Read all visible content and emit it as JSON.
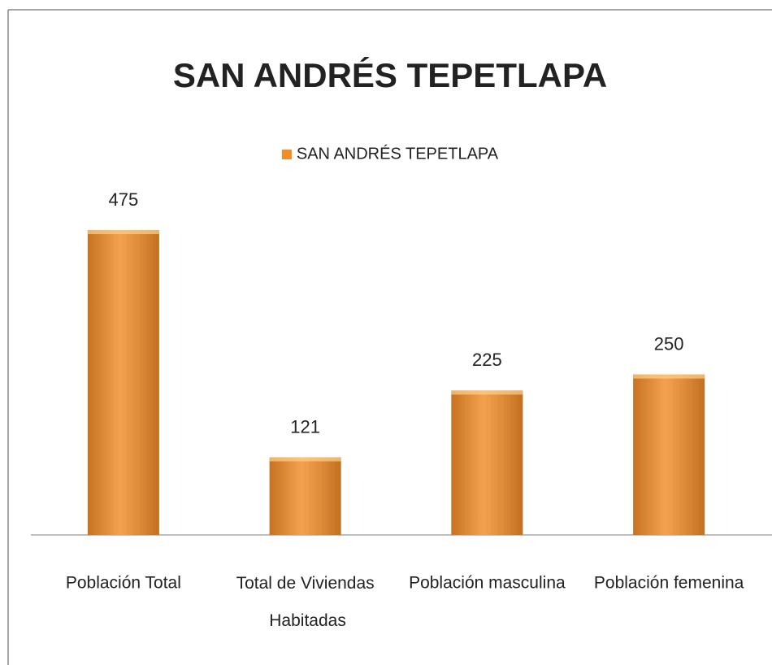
{
  "chart_data": {
    "type": "bar",
    "title": "SAN ANDRÉS TEPETLAPA",
    "categories": [
      "Población Total",
      "Total de Viviendas Habitadas",
      "Población masculina",
      "Población femenina"
    ],
    "series": [
      {
        "name": "SAN ANDRÉS TEPETLAPA",
        "color": "#f28c28",
        "values": [
          475,
          121,
          225,
          250
        ]
      }
    ],
    "legend": "top"
  }
}
